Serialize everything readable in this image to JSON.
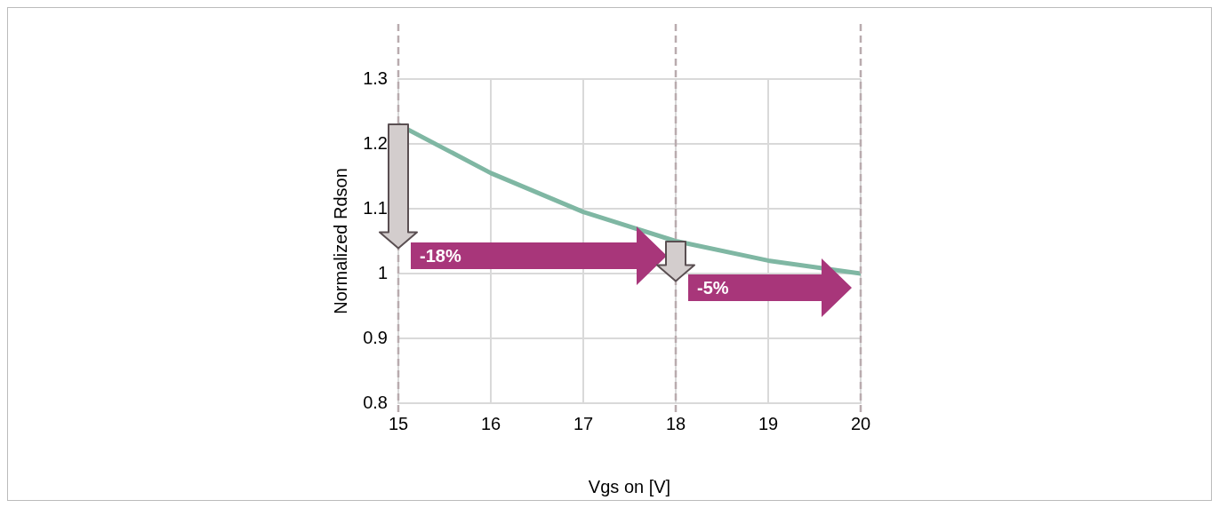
{
  "chart_data": {
    "type": "line",
    "xlabel": "Vgs on [V]",
    "ylabel": "Normalized Rdson",
    "x": [
      15,
      16,
      17,
      18,
      19,
      20
    ],
    "series": [
      {
        "color": "#7fb7a3",
        "values": [
          1.23,
          1.155,
          1.095,
          1.05,
          1.02,
          1.0
        ]
      }
    ],
    "xlim": [
      15,
      20
    ],
    "xticks": [
      15,
      16,
      17,
      18,
      19,
      20
    ],
    "ylim": [
      0.8,
      1.3
    ],
    "yticks": [
      0.8,
      0.9,
      1,
      1.1,
      1.2,
      1.3
    ],
    "grid": true,
    "legend": false,
    "marker": "none",
    "line_style": "solid",
    "ref_lines": [
      {
        "axis": "x",
        "value": 15,
        "color": "#b9abae",
        "line_style": "dashed"
      },
      {
        "axis": "x",
        "value": 18,
        "color": "#b9abae",
        "line_style": "dashed"
      },
      {
        "axis": "x",
        "value": 20,
        "color": "#b9abae",
        "line_style": "dashed"
      }
    ],
    "annotations": [
      "-18%",
      "-5%"
    ]
  }
}
